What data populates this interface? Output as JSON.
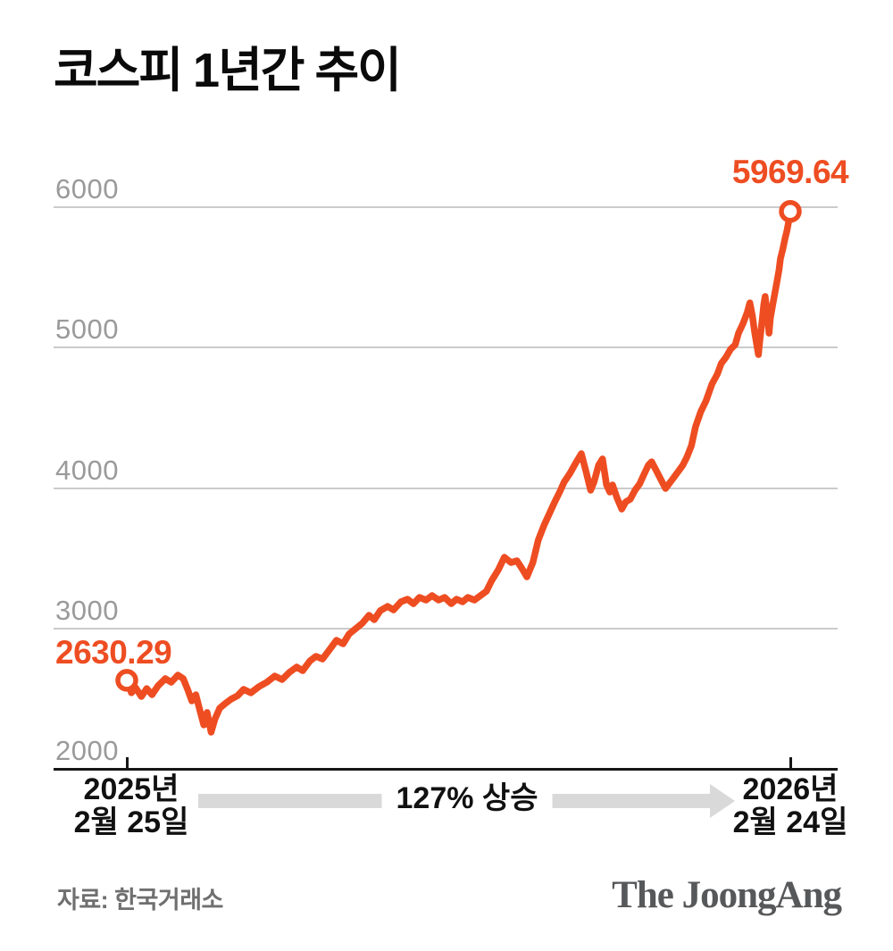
{
  "title": "코스피 1년간 추이",
  "chart_data": {
    "type": "line",
    "title": "코스피 1년간 추이",
    "series_name": "KOSPI",
    "grid": true,
    "legend": "none",
    "y_ticks": [
      2000,
      3000,
      4000,
      5000,
      6000
    ],
    "ylim": [
      2000,
      6200
    ],
    "x_start_label": [
      "2025년",
      "2월 25일"
    ],
    "x_end_label": [
      "2026년",
      "2월 24일"
    ],
    "start_value": 2630.29,
    "end_value": 5969.64,
    "start_value_label": "2630.29",
    "end_value_label": "5969.64",
    "change_percent": 127,
    "change_label": "127% 상승",
    "line_color": "#ee4d22",
    "points": [
      [
        0,
        2630.29
      ],
      [
        0.007,
        2541
      ],
      [
        0.013,
        2579
      ],
      [
        0.022,
        2515
      ],
      [
        0.03,
        2572
      ],
      [
        0.038,
        2528
      ],
      [
        0.047,
        2591
      ],
      [
        0.058,
        2642
      ],
      [
        0.067,
        2617
      ],
      [
        0.077,
        2668
      ],
      [
        0.085,
        2642
      ],
      [
        0.092,
        2560
      ],
      [
        0.098,
        2483
      ],
      [
        0.104,
        2528
      ],
      [
        0.11,
        2420
      ],
      [
        0.116,
        2312
      ],
      [
        0.121,
        2401
      ],
      [
        0.127,
        2261
      ],
      [
        0.133,
        2356
      ],
      [
        0.14,
        2432
      ],
      [
        0.148,
        2464
      ],
      [
        0.157,
        2496
      ],
      [
        0.167,
        2521
      ],
      [
        0.176,
        2566
      ],
      [
        0.187,
        2541
      ],
      [
        0.199,
        2585
      ],
      [
        0.211,
        2617
      ],
      [
        0.223,
        2661
      ],
      [
        0.234,
        2636
      ],
      [
        0.245,
        2687
      ],
      [
        0.256,
        2725
      ],
      [
        0.265,
        2699
      ],
      [
        0.276,
        2769
      ],
      [
        0.285,
        2801
      ],
      [
        0.295,
        2782
      ],
      [
        0.306,
        2852
      ],
      [
        0.316,
        2916
      ],
      [
        0.326,
        2890
      ],
      [
        0.335,
        2960
      ],
      [
        0.345,
        2998
      ],
      [
        0.355,
        3037
      ],
      [
        0.365,
        3094
      ],
      [
        0.373,
        3062
      ],
      [
        0.382,
        3126
      ],
      [
        0.393,
        3157
      ],
      [
        0.402,
        3132
      ],
      [
        0.413,
        3189
      ],
      [
        0.423,
        3208
      ],
      [
        0.432,
        3176
      ],
      [
        0.441,
        3221
      ],
      [
        0.451,
        3202
      ],
      [
        0.46,
        3234
      ],
      [
        0.47,
        3202
      ],
      [
        0.479,
        3221
      ],
      [
        0.489,
        3176
      ],
      [
        0.497,
        3208
      ],
      [
        0.506,
        3189
      ],
      [
        0.514,
        3221
      ],
      [
        0.524,
        3202
      ],
      [
        0.533,
        3234
      ],
      [
        0.542,
        3265
      ],
      [
        0.55,
        3342
      ],
      [
        0.56,
        3418
      ],
      [
        0.569,
        3507
      ],
      [
        0.579,
        3469
      ],
      [
        0.588,
        3482
      ],
      [
        0.596,
        3424
      ],
      [
        0.603,
        3367
      ],
      [
        0.612,
        3469
      ],
      [
        0.62,
        3628
      ],
      [
        0.629,
        3736
      ],
      [
        0.637,
        3819
      ],
      [
        0.645,
        3901
      ],
      [
        0.653,
        3978
      ],
      [
        0.659,
        4041
      ],
      [
        0.668,
        4105
      ],
      [
        0.677,
        4181
      ],
      [
        0.685,
        4245
      ],
      [
        0.692,
        4118
      ],
      [
        0.699,
        3984
      ],
      [
        0.704,
        4041
      ],
      [
        0.711,
        4162
      ],
      [
        0.717,
        4207
      ],
      [
        0.723,
        4022
      ],
      [
        0.728,
        3971
      ],
      [
        0.732,
        4022
      ],
      [
        0.739,
        3927
      ],
      [
        0.746,
        3850
      ],
      [
        0.752,
        3901
      ],
      [
        0.759,
        3921
      ],
      [
        0.766,
        3984
      ],
      [
        0.773,
        4029
      ],
      [
        0.779,
        4092
      ],
      [
        0.786,
        4162
      ],
      [
        0.791,
        4187
      ],
      [
        0.798,
        4124
      ],
      [
        0.805,
        4060
      ],
      [
        0.812,
        3997
      ],
      [
        0.818,
        4035
      ],
      [
        0.825,
        4079
      ],
      [
        0.832,
        4124
      ],
      [
        0.838,
        4162
      ],
      [
        0.844,
        4219
      ],
      [
        0.851,
        4302
      ],
      [
        0.857,
        4435
      ],
      [
        0.865,
        4543
      ],
      [
        0.873,
        4620
      ],
      [
        0.882,
        4741
      ],
      [
        0.89,
        4811
      ],
      [
        0.896,
        4887
      ],
      [
        0.903,
        4931
      ],
      [
        0.91,
        4988
      ],
      [
        0.917,
        5020
      ],
      [
        0.922,
        5103
      ],
      [
        0.929,
        5173
      ],
      [
        0.935,
        5249
      ],
      [
        0.939,
        5319
      ],
      [
        0.943,
        5224
      ],
      [
        0.946,
        5116
      ],
      [
        0.949,
        5033
      ],
      [
        0.952,
        4950
      ],
      [
        0.954,
        5046
      ],
      [
        0.957,
        5173
      ],
      [
        0.96,
        5306
      ],
      [
        0.962,
        5364
      ],
      [
        0.965,
        5256
      ],
      [
        0.968,
        5103
      ],
      [
        0.97,
        5211
      ],
      [
        0.974,
        5319
      ],
      [
        0.979,
        5446
      ],
      [
        0.983,
        5554
      ],
      [
        0.985,
        5631
      ],
      [
        0.989,
        5707
      ],
      [
        0.992,
        5777
      ],
      [
        0.995,
        5834
      ],
      [
        0.997,
        5885
      ],
      [
        1,
        5969.64
      ]
    ]
  },
  "footer": {
    "source": "자료: 한국거래소",
    "logo": "The JoongAng"
  }
}
